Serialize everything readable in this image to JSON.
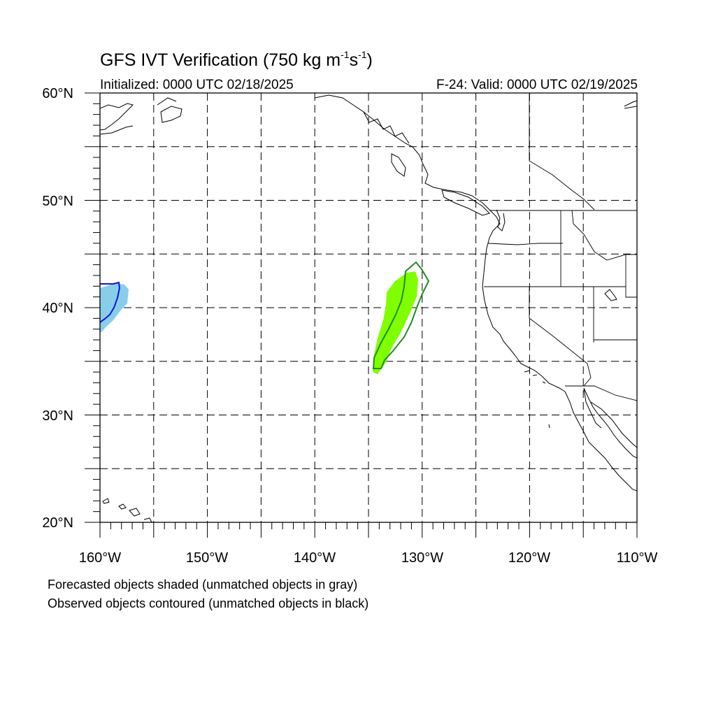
{
  "title": {
    "prefix": "GFS IVT Verification (750 kg m",
    "exp1": "-1",
    "mid": "s",
    "exp2": "-1",
    "suffix": ")"
  },
  "initialized": "Initialized: 0000 UTC 02/18/2025",
  "valid": "F-24: Valid: 0000 UTC 02/19/2025",
  "lat_labels": [
    "60°N",
    "50°N",
    "40°N",
    "30°N",
    "20°N"
  ],
  "lon_labels": [
    "160°W",
    "150°W",
    "140°W",
    "130°W",
    "120°W",
    "110°W"
  ],
  "notes": [
    "Forecasted objects shaded (unmatched objects in gray)",
    "Observed objects contoured (unmatched objects in black)"
  ],
  "map": {
    "lon_range": [
      -160,
      -110
    ],
    "lat_range": [
      20,
      60
    ],
    "grid_spacing_deg": 5,
    "grid_style": "dashed",
    "colors": {
      "object_blue_fill": "#87ceeb",
      "object_blue_contour": "#1414d2",
      "object_green_fill": "#7fff00",
      "object_green_contour": "#228b22",
      "coastline": "#000000"
    }
  }
}
